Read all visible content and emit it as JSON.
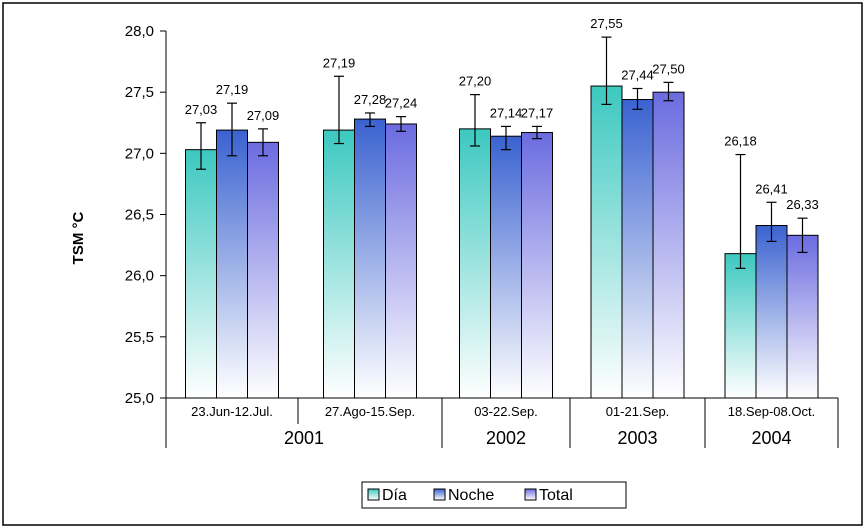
{
  "chart_data": {
    "type": "bar",
    "title": "",
    "xlabel": "",
    "ylabel": "TSM °C",
    "ylim": [
      25.0,
      28.0
    ],
    "yticks": [
      "25,0",
      "25,5",
      "26,0",
      "26,5",
      "27,0",
      "27,5",
      "28,0"
    ],
    "grid": false,
    "legend_position": "bottom",
    "categories": [
      "23.Jun-12.Jul.",
      "27.Ago-15.Sep.",
      "03-22.Sep.",
      "01-21.Sep.",
      "18.Sep-08.Oct."
    ],
    "years": [
      {
        "label": "2001",
        "categories": [
          0,
          1
        ]
      },
      {
        "label": "2002",
        "categories": [
          2
        ]
      },
      {
        "label": "2003",
        "categories": [
          3
        ]
      },
      {
        "label": "2004",
        "categories": [
          4
        ]
      }
    ],
    "series": [
      {
        "name": "Día",
        "color": "#3cc8c0",
        "values": [
          27.03,
          27.19,
          27.2,
          27.55,
          26.18
        ],
        "labels": [
          "27,03",
          "27,19",
          "27,20",
          "27,55",
          "26,18"
        ],
        "err_high": [
          27.25,
          27.63,
          27.48,
          27.95,
          26.99
        ],
        "err_low": [
          26.87,
          27.08,
          27.06,
          27.4,
          26.06
        ]
      },
      {
        "name": "Noche",
        "color": "#3a62d0",
        "values": [
          27.19,
          27.28,
          27.14,
          27.44,
          26.41
        ],
        "labels": [
          "27,19",
          "27,28",
          "27,14",
          "27,44",
          "26,41"
        ],
        "err_high": [
          27.41,
          27.33,
          27.22,
          27.53,
          26.6
        ],
        "err_low": [
          26.98,
          27.22,
          27.03,
          27.36,
          26.28
        ]
      },
      {
        "name": "Total",
        "color": "#6b6be0",
        "values": [
          27.09,
          27.24,
          27.17,
          27.5,
          26.33
        ],
        "labels": [
          "27,09",
          "27,24",
          "27,17",
          "27,50",
          "26,33"
        ],
        "err_high": [
          27.2,
          27.3,
          27.22,
          27.58,
          26.47
        ],
        "err_low": [
          26.98,
          27.18,
          27.12,
          27.43,
          26.19
        ]
      }
    ]
  }
}
